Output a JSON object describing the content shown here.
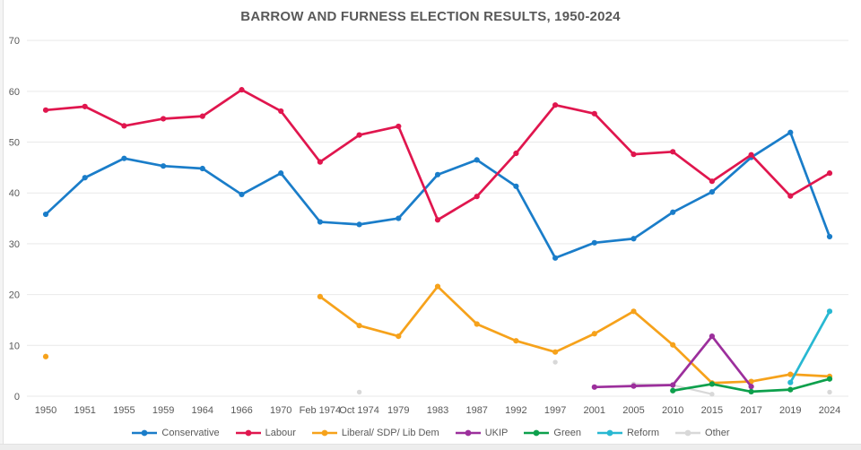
{
  "window": {
    "left_edge": "window-edge",
    "bottom_edge": "window-edge"
  },
  "chart_data": {
    "type": "line",
    "title": "BARROW AND FURNESS ELECTION RESULTS, 1950-2024",
    "xlabel": "",
    "ylabel": "",
    "ylim": [
      0,
      70
    ],
    "yticks": [
      0,
      10,
      20,
      30,
      40,
      50,
      60,
      70
    ],
    "grid": "horizontal",
    "grid_color": "#e9e9e9",
    "axis_label_color": "#595959",
    "legend_position": "bottom",
    "categories": [
      "1950",
      "1951",
      "1955",
      "1959",
      "1964",
      "1966",
      "1970",
      "Feb 1974",
      "Oct 1974",
      "1979",
      "1983",
      "1987",
      "1992",
      "1997",
      "2001",
      "2005",
      "2010",
      "2015",
      "2017",
      "2019",
      "2024"
    ],
    "series": [
      {
        "name": "Conservative",
        "color": "#1a7dc9",
        "z": 1,
        "values": [
          35.8,
          43.0,
          46.8,
          45.3,
          44.8,
          39.7,
          43.9,
          34.3,
          33.8,
          35.0,
          43.6,
          46.5,
          41.3,
          27.2,
          30.2,
          31.0,
          36.2,
          40.2,
          47.0,
          51.9,
          31.4
        ]
      },
      {
        "name": "Labour",
        "color": "#e0164e",
        "z": 2,
        "values": [
          56.3,
          57.0,
          53.2,
          54.6,
          55.1,
          60.3,
          56.1,
          46.1,
          51.4,
          53.1,
          34.7,
          39.3,
          47.8,
          57.3,
          55.6,
          47.6,
          48.1,
          42.3,
          47.5,
          39.4,
          43.9
        ]
      },
      {
        "name": "Liberal/ SDP/ Lib Dem",
        "color": "#f6a21b",
        "z": 3,
        "values": [
          7.8,
          null,
          null,
          null,
          null,
          null,
          null,
          19.6,
          13.9,
          11.8,
          21.6,
          14.2,
          10.9,
          8.7,
          12.3,
          16.7,
          10.1,
          2.6,
          2.9,
          4.3,
          3.9
        ]
      },
      {
        "name": "UKIP",
        "color": "#9c2f9c",
        "z": 4,
        "values": [
          null,
          null,
          null,
          null,
          null,
          null,
          null,
          null,
          null,
          null,
          null,
          null,
          null,
          null,
          1.8,
          2.0,
          2.2,
          11.8,
          1.9,
          null,
          null
        ]
      },
      {
        "name": "Green",
        "color": "#0da04c",
        "z": 5,
        "values": [
          null,
          null,
          null,
          null,
          null,
          null,
          null,
          null,
          null,
          null,
          null,
          null,
          null,
          null,
          null,
          null,
          1.1,
          2.4,
          0.9,
          1.3,
          3.4
        ]
      },
      {
        "name": "Reform",
        "color": "#28b8d2",
        "z": 6,
        "values": [
          null,
          null,
          null,
          null,
          null,
          null,
          null,
          null,
          null,
          null,
          null,
          null,
          null,
          null,
          null,
          null,
          null,
          null,
          null,
          2.7,
          16.7
        ]
      },
      {
        "name": "Other",
        "color": "#d8d8d8",
        "z": 0,
        "values": [
          null,
          null,
          null,
          null,
          null,
          null,
          null,
          null,
          0.8,
          null,
          null,
          null,
          null,
          6.7,
          null,
          2.4,
          2.2,
          0.4,
          null,
          null,
          0.8
        ]
      }
    ]
  }
}
